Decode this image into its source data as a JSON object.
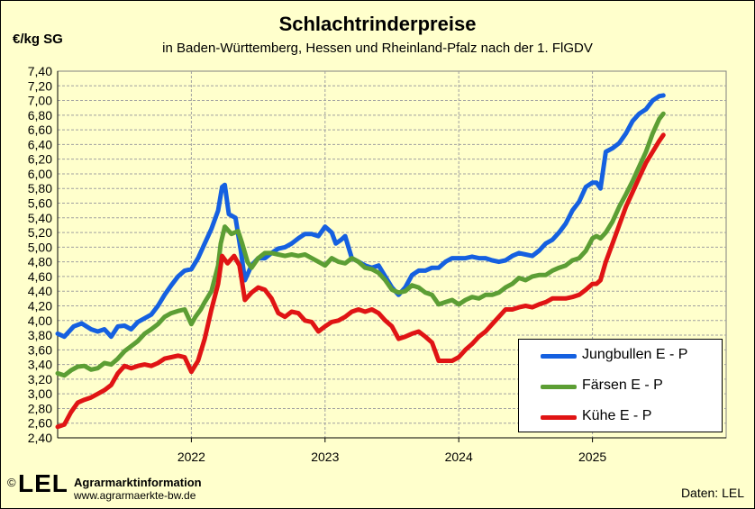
{
  "title": "Schlachtrinderpreise",
  "subtitle": "in Baden-Württemberg, Hessen  und Rheinland-Pfalz  nach der 1. FlGDV",
  "unit_label": "€/kg SG",
  "footer": {
    "logo_copyright": "©",
    "logo_text": "LEL",
    "org": "Agrarmarktinformation",
    "url": "www.agrarmaerkte-bw.de",
    "source": "Daten:  LEL"
  },
  "colors": {
    "background": "#ffffcc",
    "plot_bg": "#ffffcc",
    "grid": "#a0a0a0"
  },
  "chart_data": {
    "type": "line",
    "x_tick_labels": [
      "2022",
      "2023",
      "2024",
      "2025"
    ],
    "x_ticks": [
      2022.0,
      2023.0,
      2024.0,
      2025.0
    ],
    "xlim": [
      2021.0,
      2026.0
    ],
    "ylim": [
      2.4,
      7.4
    ],
    "y_step": 0.2,
    "y_tick_labels": [
      "2,40",
      "2,60",
      "2,80",
      "3,00",
      "3,20",
      "3,40",
      "3,60",
      "3,80",
      "4,00",
      "4,20",
      "4,40",
      "4,60",
      "4,80",
      "5,00",
      "5,20",
      "5,40",
      "5,60",
      "5,80",
      "6,00",
      "6,20",
      "6,40",
      "6,60",
      "6,80",
      "7,00",
      "7,20",
      "7,40"
    ],
    "grid": true,
    "legend_position": "bottom-right",
    "series": [
      {
        "name": "Jungbullen E - P",
        "color": "#1560e0",
        "points": [
          [
            2021.0,
            3.82
          ],
          [
            2021.05,
            3.78
          ],
          [
            2021.12,
            3.92
          ],
          [
            2021.18,
            3.96
          ],
          [
            2021.25,
            3.88
          ],
          [
            2021.3,
            3.85
          ],
          [
            2021.35,
            3.88
          ],
          [
            2021.4,
            3.78
          ],
          [
            2021.45,
            3.92
          ],
          [
            2021.5,
            3.93
          ],
          [
            2021.55,
            3.88
          ],
          [
            2021.6,
            3.98
          ],
          [
            2021.65,
            4.03
          ],
          [
            2021.7,
            4.08
          ],
          [
            2021.75,
            4.2
          ],
          [
            2021.8,
            4.35
          ],
          [
            2021.85,
            4.48
          ],
          [
            2021.9,
            4.6
          ],
          [
            2021.95,
            4.68
          ],
          [
            2022.0,
            4.7
          ],
          [
            2022.05,
            4.85
          ],
          [
            2022.1,
            5.05
          ],
          [
            2022.15,
            5.25
          ],
          [
            2022.2,
            5.5
          ],
          [
            2022.23,
            5.82
          ],
          [
            2022.25,
            5.85
          ],
          [
            2022.28,
            5.45
          ],
          [
            2022.33,
            5.4
          ],
          [
            2022.37,
            4.95
          ],
          [
            2022.4,
            4.55
          ],
          [
            2022.45,
            4.75
          ],
          [
            2022.5,
            4.85
          ],
          [
            2022.55,
            4.85
          ],
          [
            2022.6,
            4.92
          ],
          [
            2022.65,
            4.98
          ],
          [
            2022.7,
            5.0
          ],
          [
            2022.75,
            5.05
          ],
          [
            2022.8,
            5.12
          ],
          [
            2022.85,
            5.18
          ],
          [
            2022.9,
            5.18
          ],
          [
            2022.95,
            5.15
          ],
          [
            2023.0,
            5.28
          ],
          [
            2023.05,
            5.2
          ],
          [
            2023.08,
            5.05
          ],
          [
            2023.12,
            5.1
          ],
          [
            2023.15,
            5.15
          ],
          [
            2023.2,
            4.85
          ],
          [
            2023.25,
            4.8
          ],
          [
            2023.3,
            4.75
          ],
          [
            2023.35,
            4.72
          ],
          [
            2023.4,
            4.75
          ],
          [
            2023.45,
            4.6
          ],
          [
            2023.5,
            4.45
          ],
          [
            2023.55,
            4.35
          ],
          [
            2023.6,
            4.45
          ],
          [
            2023.65,
            4.62
          ],
          [
            2023.7,
            4.68
          ],
          [
            2023.75,
            4.68
          ],
          [
            2023.8,
            4.72
          ],
          [
            2023.85,
            4.72
          ],
          [
            2023.9,
            4.8
          ],
          [
            2023.95,
            4.85
          ],
          [
            2024.0,
            4.85
          ],
          [
            2024.05,
            4.85
          ],
          [
            2024.1,
            4.87
          ],
          [
            2024.15,
            4.85
          ],
          [
            2024.2,
            4.85
          ],
          [
            2024.25,
            4.82
          ],
          [
            2024.3,
            4.8
          ],
          [
            2024.35,
            4.82
          ],
          [
            2024.4,
            4.88
          ],
          [
            2024.45,
            4.92
          ],
          [
            2024.5,
            4.9
          ],
          [
            2024.55,
            4.88
          ],
          [
            2024.6,
            4.95
          ],
          [
            2024.65,
            5.05
          ],
          [
            2024.7,
            5.1
          ],
          [
            2024.75,
            5.2
          ],
          [
            2024.8,
            5.32
          ],
          [
            2024.85,
            5.5
          ],
          [
            2024.9,
            5.62
          ],
          [
            2024.95,
            5.82
          ],
          [
            2025.0,
            5.88
          ],
          [
            2025.03,
            5.88
          ],
          [
            2025.06,
            5.8
          ],
          [
            2025.1,
            6.3
          ],
          [
            2025.15,
            6.35
          ],
          [
            2025.2,
            6.42
          ],
          [
            2025.25,
            6.55
          ],
          [
            2025.3,
            6.72
          ],
          [
            2025.35,
            6.82
          ],
          [
            2025.4,
            6.88
          ],
          [
            2025.45,
            7.0
          ],
          [
            2025.5,
            7.06
          ],
          [
            2025.53,
            7.07
          ]
        ]
      },
      {
        "name": "Färsen E - P",
        "color": "#5c9e34",
        "points": [
          [
            2021.0,
            3.28
          ],
          [
            2021.05,
            3.25
          ],
          [
            2021.1,
            3.32
          ],
          [
            2021.15,
            3.37
          ],
          [
            2021.2,
            3.38
          ],
          [
            2021.25,
            3.33
          ],
          [
            2021.3,
            3.35
          ],
          [
            2021.35,
            3.42
          ],
          [
            2021.4,
            3.4
          ],
          [
            2021.45,
            3.48
          ],
          [
            2021.5,
            3.58
          ],
          [
            2021.55,
            3.65
          ],
          [
            2021.6,
            3.72
          ],
          [
            2021.65,
            3.82
          ],
          [
            2021.7,
            3.88
          ],
          [
            2021.75,
            3.95
          ],
          [
            2021.8,
            4.05
          ],
          [
            2021.85,
            4.1
          ],
          [
            2021.9,
            4.13
          ],
          [
            2021.95,
            4.15
          ],
          [
            2022.0,
            3.95
          ],
          [
            2022.03,
            4.05
          ],
          [
            2022.07,
            4.15
          ],
          [
            2022.1,
            4.25
          ],
          [
            2022.15,
            4.4
          ],
          [
            2022.2,
            4.75
          ],
          [
            2022.22,
            5.05
          ],
          [
            2022.25,
            5.28
          ],
          [
            2022.3,
            5.18
          ],
          [
            2022.35,
            5.22
          ],
          [
            2022.38,
            5.05
          ],
          [
            2022.42,
            4.8
          ],
          [
            2022.45,
            4.72
          ],
          [
            2022.5,
            4.85
          ],
          [
            2022.55,
            4.92
          ],
          [
            2022.6,
            4.92
          ],
          [
            2022.65,
            4.9
          ],
          [
            2022.7,
            4.88
          ],
          [
            2022.75,
            4.9
          ],
          [
            2022.8,
            4.88
          ],
          [
            2022.85,
            4.9
          ],
          [
            2022.9,
            4.85
          ],
          [
            2022.95,
            4.8
          ],
          [
            2023.0,
            4.75
          ],
          [
            2023.05,
            4.85
          ],
          [
            2023.1,
            4.8
          ],
          [
            2023.15,
            4.78
          ],
          [
            2023.2,
            4.85
          ],
          [
            2023.25,
            4.8
          ],
          [
            2023.3,
            4.72
          ],
          [
            2023.35,
            4.7
          ],
          [
            2023.4,
            4.65
          ],
          [
            2023.45,
            4.55
          ],
          [
            2023.5,
            4.42
          ],
          [
            2023.55,
            4.38
          ],
          [
            2023.6,
            4.4
          ],
          [
            2023.65,
            4.48
          ],
          [
            2023.7,
            4.45
          ],
          [
            2023.75,
            4.38
          ],
          [
            2023.8,
            4.35
          ],
          [
            2023.85,
            4.22
          ],
          [
            2023.9,
            4.25
          ],
          [
            2023.95,
            4.28
          ],
          [
            2024.0,
            4.22
          ],
          [
            2024.05,
            4.28
          ],
          [
            2024.1,
            4.32
          ],
          [
            2024.15,
            4.3
          ],
          [
            2024.2,
            4.35
          ],
          [
            2024.25,
            4.35
          ],
          [
            2024.3,
            4.38
          ],
          [
            2024.35,
            4.45
          ],
          [
            2024.4,
            4.5
          ],
          [
            2024.45,
            4.58
          ],
          [
            2024.5,
            4.55
          ],
          [
            2024.55,
            4.6
          ],
          [
            2024.6,
            4.62
          ],
          [
            2024.65,
            4.62
          ],
          [
            2024.7,
            4.68
          ],
          [
            2024.75,
            4.72
          ],
          [
            2024.8,
            4.75
          ],
          [
            2024.85,
            4.82
          ],
          [
            2024.9,
            4.85
          ],
          [
            2024.95,
            4.95
          ],
          [
            2025.0,
            5.12
          ],
          [
            2025.03,
            5.15
          ],
          [
            2025.06,
            5.12
          ],
          [
            2025.1,
            5.2
          ],
          [
            2025.15,
            5.35
          ],
          [
            2025.2,
            5.55
          ],
          [
            2025.25,
            5.72
          ],
          [
            2025.3,
            5.9
          ],
          [
            2025.35,
            6.1
          ],
          [
            2025.4,
            6.3
          ],
          [
            2025.45,
            6.55
          ],
          [
            2025.5,
            6.75
          ],
          [
            2025.53,
            6.82
          ]
        ]
      },
      {
        "name": "Kühe E - P",
        "color": "#e01414",
        "points": [
          [
            2021.0,
            2.55
          ],
          [
            2021.05,
            2.58
          ],
          [
            2021.1,
            2.75
          ],
          [
            2021.15,
            2.88
          ],
          [
            2021.2,
            2.92
          ],
          [
            2021.25,
            2.95
          ],
          [
            2021.3,
            3.0
          ],
          [
            2021.35,
            3.05
          ],
          [
            2021.4,
            3.12
          ],
          [
            2021.45,
            3.28
          ],
          [
            2021.5,
            3.38
          ],
          [
            2021.55,
            3.35
          ],
          [
            2021.6,
            3.38
          ],
          [
            2021.65,
            3.4
          ],
          [
            2021.7,
            3.38
          ],
          [
            2021.75,
            3.42
          ],
          [
            2021.8,
            3.48
          ],
          [
            2021.85,
            3.5
          ],
          [
            2021.9,
            3.52
          ],
          [
            2021.95,
            3.5
          ],
          [
            2022.0,
            3.3
          ],
          [
            2022.05,
            3.45
          ],
          [
            2022.1,
            3.75
          ],
          [
            2022.15,
            4.15
          ],
          [
            2022.2,
            4.5
          ],
          [
            2022.23,
            4.88
          ],
          [
            2022.27,
            4.78
          ],
          [
            2022.32,
            4.88
          ],
          [
            2022.36,
            4.75
          ],
          [
            2022.4,
            4.28
          ],
          [
            2022.45,
            4.38
          ],
          [
            2022.5,
            4.45
          ],
          [
            2022.55,
            4.42
          ],
          [
            2022.6,
            4.3
          ],
          [
            2022.65,
            4.1
          ],
          [
            2022.7,
            4.05
          ],
          [
            2022.75,
            4.12
          ],
          [
            2022.8,
            4.1
          ],
          [
            2022.85,
            4.0
          ],
          [
            2022.9,
            3.98
          ],
          [
            2022.95,
            3.85
          ],
          [
            2023.0,
            3.92
          ],
          [
            2023.05,
            3.98
          ],
          [
            2023.1,
            4.0
          ],
          [
            2023.15,
            4.05
          ],
          [
            2023.2,
            4.12
          ],
          [
            2023.25,
            4.15
          ],
          [
            2023.3,
            4.12
          ],
          [
            2023.35,
            4.15
          ],
          [
            2023.4,
            4.1
          ],
          [
            2023.45,
            4.0
          ],
          [
            2023.5,
            3.92
          ],
          [
            2023.55,
            3.75
          ],
          [
            2023.6,
            3.78
          ],
          [
            2023.65,
            3.82
          ],
          [
            2023.7,
            3.85
          ],
          [
            2023.75,
            3.78
          ],
          [
            2023.8,
            3.7
          ],
          [
            2023.85,
            3.45
          ],
          [
            2023.9,
            3.45
          ],
          [
            2023.95,
            3.45
          ],
          [
            2024.0,
            3.5
          ],
          [
            2024.05,
            3.6
          ],
          [
            2024.1,
            3.68
          ],
          [
            2024.15,
            3.78
          ],
          [
            2024.2,
            3.85
          ],
          [
            2024.25,
            3.95
          ],
          [
            2024.3,
            4.05
          ],
          [
            2024.35,
            4.15
          ],
          [
            2024.4,
            4.15
          ],
          [
            2024.45,
            4.18
          ],
          [
            2024.5,
            4.2
          ],
          [
            2024.55,
            4.18
          ],
          [
            2024.6,
            4.22
          ],
          [
            2024.65,
            4.25
          ],
          [
            2024.7,
            4.3
          ],
          [
            2024.75,
            4.3
          ],
          [
            2024.8,
            4.3
          ],
          [
            2024.85,
            4.32
          ],
          [
            2024.9,
            4.35
          ],
          [
            2024.95,
            4.42
          ],
          [
            2025.0,
            4.5
          ],
          [
            2025.03,
            4.5
          ],
          [
            2025.06,
            4.55
          ],
          [
            2025.1,
            4.8
          ],
          [
            2025.15,
            5.05
          ],
          [
            2025.2,
            5.3
          ],
          [
            2025.25,
            5.55
          ],
          [
            2025.3,
            5.75
          ],
          [
            2025.35,
            5.95
          ],
          [
            2025.4,
            6.15
          ],
          [
            2025.45,
            6.3
          ],
          [
            2025.5,
            6.45
          ],
          [
            2025.53,
            6.53
          ]
        ]
      }
    ]
  }
}
